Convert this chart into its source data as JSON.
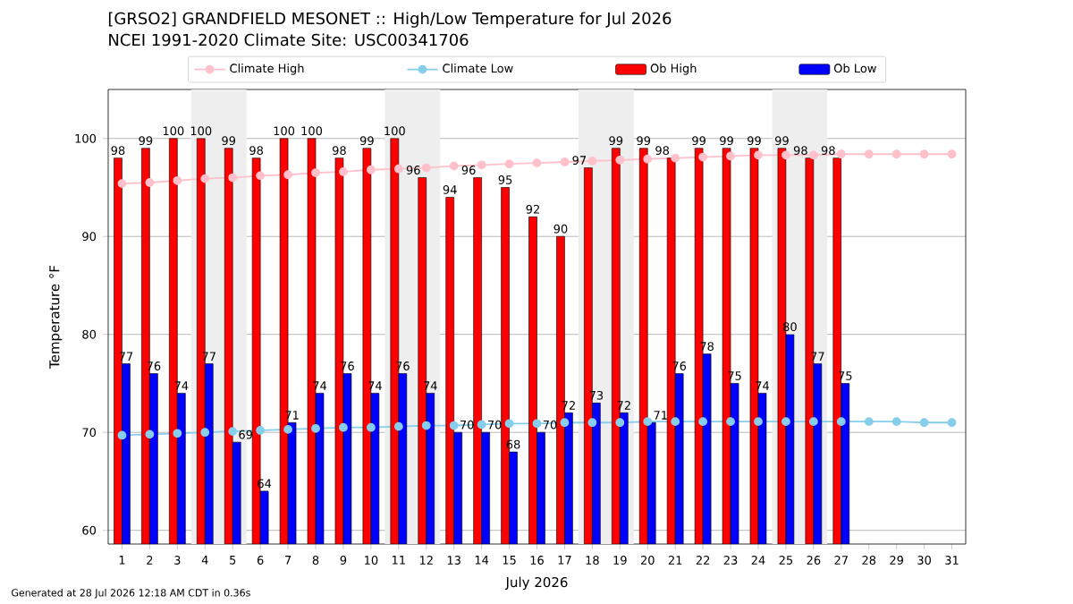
{
  "chart_data": {
    "type": "bar",
    "title": "[GRSO2] GRANDFIELD MESONET :: High/Low Temperature for Jul 2026",
    "subtitle": "NCEI 1991-2020 Climate Site: USC00341706",
    "xlabel": "July 2026",
    "ylabel": "Temperature °F",
    "x": [
      1,
      2,
      3,
      4,
      5,
      6,
      7,
      8,
      9,
      10,
      11,
      12,
      13,
      14,
      15,
      16,
      17,
      18,
      19,
      20,
      21,
      22,
      23,
      24,
      25,
      26,
      27,
      28,
      29,
      30,
      31
    ],
    "series": [
      {
        "name": "Climate High",
        "type": "line",
        "color": "#ffc0cb",
        "values": [
          95.4,
          95.5,
          95.7,
          95.9,
          96.0,
          96.2,
          96.3,
          96.5,
          96.6,
          96.8,
          96.9,
          97.0,
          97.2,
          97.3,
          97.4,
          97.5,
          97.6,
          97.7,
          97.8,
          97.9,
          98.0,
          98.1,
          98.2,
          98.3,
          98.3,
          98.3,
          98.4,
          98.4,
          98.4,
          98.4,
          98.4
        ]
      },
      {
        "name": "Climate Low",
        "type": "line",
        "color": "#87ceeb",
        "values": [
          69.7,
          69.8,
          69.9,
          70.0,
          70.1,
          70.2,
          70.3,
          70.4,
          70.5,
          70.5,
          70.6,
          70.7,
          70.7,
          70.8,
          70.9,
          70.9,
          71.0,
          71.0,
          71.0,
          71.1,
          71.1,
          71.1,
          71.1,
          71.1,
          71.1,
          71.1,
          71.1,
          71.1,
          71.1,
          71.0,
          71.0
        ]
      },
      {
        "name": "Ob High",
        "color": "#ff0000",
        "values": [
          98,
          99,
          100,
          100,
          99,
          98,
          100,
          100,
          98,
          99,
          100,
          96,
          94,
          96,
          95,
          92,
          90,
          97,
          99,
          99,
          98,
          99,
          99,
          99,
          99,
          98,
          98,
          null,
          null,
          null,
          null
        ],
        "value_labels": [
          "98",
          "99",
          "100",
          "100",
          "99",
          "98",
          "100",
          "100",
          "98",
          "99",
          "100",
          "96",
          "94",
          "96",
          "95",
          "92",
          "90",
          "97",
          "99",
          "99",
          "98",
          "99",
          "99",
          "99",
          "99",
          "98",
          "98",
          null,
          null,
          null,
          null
        ]
      },
      {
        "name": "Ob Low",
        "color": "#0000ff",
        "values": [
          77,
          76,
          74,
          77,
          69,
          64,
          71,
          74,
          76,
          74,
          76,
          74,
          70,
          70,
          68,
          70,
          72,
          73,
          72,
          71,
          76,
          78,
          75,
          74,
          80,
          77,
          75,
          null,
          null,
          null,
          null
        ],
        "value_labels": [
          "77",
          "76",
          "74",
          "77",
          "69",
          "64",
          "71",
          "74",
          "76",
          "74",
          "76",
          "74",
          "70",
          "70",
          "68",
          "70",
          "72",
          "73",
          "72",
          "71",
          "76",
          "78",
          "75",
          "74",
          "80",
          "77",
          "75",
          null,
          null,
          null,
          null
        ]
      }
    ],
    "marker": "circle",
    "grid": "y",
    "legend": "top",
    "xlim": [
      0.5,
      31.5
    ],
    "xticks": [
      1,
      2,
      3,
      4,
      5,
      6,
      7,
      8,
      9,
      10,
      11,
      12,
      13,
      14,
      15,
      16,
      17,
      18,
      19,
      20,
      21,
      22,
      23,
      24,
      25,
      26,
      27,
      28,
      29,
      30,
      31
    ],
    "ylim": [
      58.6,
      105
    ],
    "yticks": [
      60,
      70,
      80,
      90,
      100
    ],
    "bands": [
      {
        "axis": "x",
        "from": 3.5,
        "to": 5.5,
        "color": "#eeeeee"
      },
      {
        "axis": "x",
        "from": 10.5,
        "to": 12.5,
        "color": "#eeeeee"
      },
      {
        "axis": "x",
        "from": 17.5,
        "to": 19.5,
        "color": "#eeeeee"
      },
      {
        "axis": "x",
        "from": 24.5,
        "to": 26.5,
        "color": "#eeeeee"
      }
    ],
    "annotations": [
      "Generated at 28 Jul 2026 12:18 AM CDT in 0.36s"
    ]
  }
}
